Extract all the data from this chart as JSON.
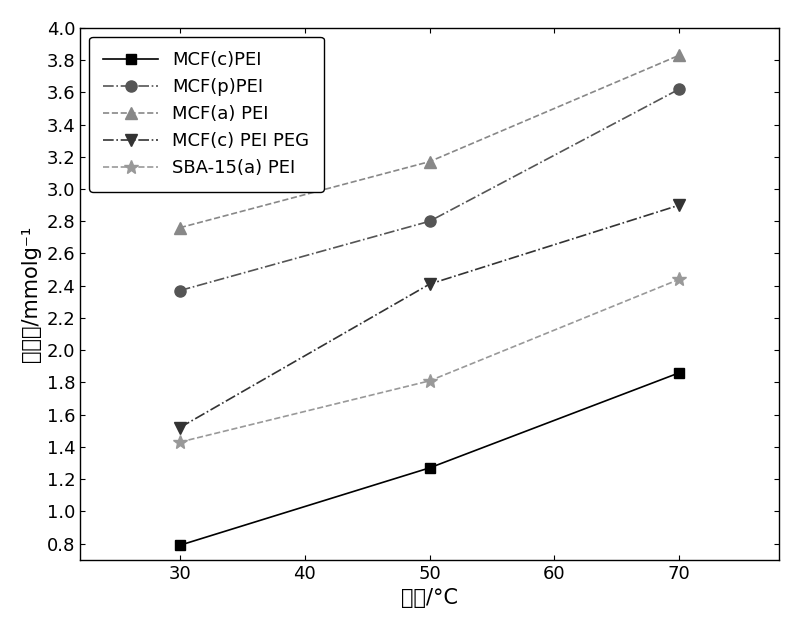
{
  "x": [
    30,
    50,
    70
  ],
  "series": [
    {
      "label": "MCF(c)PEI",
      "values": [
        0.79,
        1.27,
        1.86
      ],
      "marker": "s",
      "linestyle": "-",
      "color": "#000000",
      "markersize": 7,
      "linewidth": 1.2
    },
    {
      "label": "MCF(p)PEI",
      "values": [
        2.37,
        2.8,
        3.62
      ],
      "marker": "o",
      "linestyle": "-.",
      "color": "#555555",
      "markersize": 8,
      "linewidth": 1.2
    },
    {
      "label": "MCF(a) PEI",
      "values": [
        2.76,
        3.17,
        3.83
      ],
      "marker": "^",
      "linestyle": "--",
      "color": "#888888",
      "markersize": 8,
      "linewidth": 1.2
    },
    {
      "label": "MCF(c) PEI PEG",
      "values": [
        1.52,
        2.41,
        2.9
      ],
      "marker": "v",
      "linestyle": "-.",
      "color": "#333333",
      "markersize": 9,
      "linewidth": 1.2
    },
    {
      "label": "SBA-15(a) PEI",
      "values": [
        1.43,
        1.81,
        2.44
      ],
      "marker": "*",
      "linestyle": "--",
      "color": "#999999",
      "markersize": 10,
      "linewidth": 1.2
    }
  ],
  "xlabel_cn": "温度",
  "xlabel_suffix": "/°C",
  "ylabel_cn": "吸附量",
  "ylabel_suffix": "/mmolg⁻¹",
  "xlim": [
    22,
    78
  ],
  "ylim": [
    0.7,
    4.0
  ],
  "xticks": [
    30,
    40,
    50,
    60,
    70
  ],
  "yticks": [
    0.8,
    1.0,
    1.2,
    1.4,
    1.6,
    1.8,
    2.0,
    2.2,
    2.4,
    2.6,
    2.8,
    3.0,
    3.2,
    3.4,
    3.6,
    3.8,
    4.0
  ],
  "legend_loc": "upper left",
  "background_color": "#ffffff",
  "tick_fontsize": 13,
  "label_fontsize": 15,
  "legend_fontsize": 13
}
